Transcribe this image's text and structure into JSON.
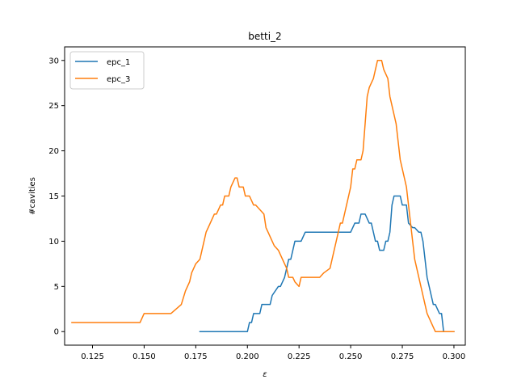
{
  "chart_data": {
    "type": "line",
    "title": "betti_2",
    "xlabel": "ε",
    "ylabel": "#cavities",
    "xlim": [
      0.1115,
      0.3055
    ],
    "ylim": [
      -1.5,
      31.5
    ],
    "xticks": [
      0.125,
      0.15,
      0.175,
      0.2,
      0.225,
      0.25,
      0.275,
      0.3
    ],
    "xtick_labels": [
      "0.125",
      "0.150",
      "0.175",
      "0.200",
      "0.225",
      "0.250",
      "0.275",
      "0.300"
    ],
    "yticks": [
      0,
      5,
      10,
      15,
      20,
      25,
      30
    ],
    "ytick_labels": [
      "0",
      "5",
      "10",
      "15",
      "20",
      "25",
      "30"
    ],
    "grid": false,
    "legend_position": "upper-left",
    "colors": {
      "epc_1": "#1f77b4",
      "epc_3": "#ff7f0e"
    },
    "series": [
      {
        "name": "epc_1",
        "color": "#1f77b4",
        "x": [
          0.177,
          0.2,
          0.201,
          0.202,
          0.203,
          0.206,
          0.207,
          0.211,
          0.212,
          0.215,
          0.216,
          0.218,
          0.219,
          0.22,
          0.221,
          0.222,
          0.223,
          0.224,
          0.225,
          0.226,
          0.228,
          0.229,
          0.23,
          0.231,
          0.233,
          0.235,
          0.24,
          0.245,
          0.25,
          0.252,
          0.253,
          0.254,
          0.255,
          0.256,
          0.257,
          0.259,
          0.26,
          0.261,
          0.262,
          0.263,
          0.264,
          0.265,
          0.266,
          0.267,
          0.268,
          0.269,
          0.27,
          0.271,
          0.272,
          0.273,
          0.274,
          0.275,
          0.276,
          0.277,
          0.278,
          0.28,
          0.281,
          0.283,
          0.284,
          0.285,
          0.286,
          0.287,
          0.288,
          0.289,
          0.29,
          0.291,
          0.292,
          0.293,
          0.294,
          0.295,
          0.296,
          0.297,
          0.298,
          0.3
        ],
        "y": [
          0,
          0,
          1,
          1,
          2,
          2,
          3,
          3,
          4,
          5,
          5,
          6,
          7,
          8,
          8,
          9,
          10,
          10,
          10,
          10,
          11,
          11,
          11,
          11,
          11,
          11,
          11,
          11,
          11,
          12,
          12,
          12,
          13,
          13,
          13,
          12,
          12,
          11,
          10,
          10,
          9,
          9,
          9,
          10,
          10,
          11,
          14,
          15,
          15,
          15,
          15,
          14,
          14,
          14,
          12,
          11.5,
          11.5,
          11,
          11,
          10,
          8,
          6,
          5,
          4,
          3,
          3,
          2.5,
          2,
          2,
          0,
          0,
          0,
          0,
          0
        ]
      },
      {
        "name": "epc_3",
        "color": "#ff7f0e",
        "x": [
          0.115,
          0.148,
          0.149,
          0.15,
          0.151,
          0.163,
          0.168,
          0.17,
          0.171,
          0.172,
          0.173,
          0.174,
          0.175,
          0.177,
          0.178,
          0.179,
          0.18,
          0.181,
          0.182,
          0.184,
          0.185,
          0.186,
          0.187,
          0.188,
          0.189,
          0.19,
          0.191,
          0.192,
          0.194,
          0.195,
          0.196,
          0.197,
          0.198,
          0.199,
          0.2,
          0.201,
          0.203,
          0.204,
          0.208,
          0.209,
          0.21,
          0.211,
          0.212,
          0.213,
          0.215,
          0.216,
          0.217,
          0.219,
          0.22,
          0.221,
          0.222,
          0.223,
          0.225,
          0.226,
          0.227,
          0.229,
          0.23,
          0.231,
          0.235,
          0.237,
          0.24,
          0.241,
          0.242,
          0.243,
          0.244,
          0.245,
          0.246,
          0.247,
          0.248,
          0.249,
          0.25,
          0.251,
          0.252,
          0.253,
          0.254,
          0.255,
          0.256,
          0.257,
          0.258,
          0.259,
          0.26,
          0.261,
          0.262,
          0.263,
          0.264,
          0.265,
          0.266,
          0.267,
          0.268,
          0.269,
          0.27,
          0.271,
          0.272,
          0.273,
          0.274,
          0.275,
          0.276,
          0.277,
          0.278,
          0.279,
          0.28,
          0.281,
          0.282,
          0.283,
          0.284,
          0.285,
          0.286,
          0.287,
          0.288,
          0.289,
          0.29,
          0.291,
          0.292,
          0.293,
          0.294,
          0.295,
          0.296,
          0.297,
          0.298,
          0.3
        ],
        "y": [
          1,
          1,
          1.5,
          2,
          2,
          2,
          3,
          4.5,
          5,
          5.5,
          6.5,
          7,
          7.5,
          8,
          9,
          10,
          11,
          11.5,
          12,
          13,
          13,
          13.5,
          14,
          14,
          15,
          15,
          15,
          16,
          17,
          17,
          16,
          16,
          16,
          15,
          15,
          15,
          14,
          14,
          13,
          11.5,
          11,
          10.5,
          10,
          9.5,
          9,
          8.5,
          8,
          7,
          6,
          6,
          6,
          5.5,
          5,
          6,
          6,
          6,
          6,
          6,
          6,
          6.5,
          7,
          8,
          9,
          10,
          11,
          12,
          12,
          13,
          14,
          15,
          16,
          18,
          18,
          19,
          19,
          19,
          20,
          23,
          26,
          27,
          27.5,
          28,
          29,
          30,
          30,
          30,
          29,
          28.5,
          28,
          26,
          25,
          24,
          23,
          21,
          19,
          18,
          17,
          16,
          14,
          12,
          10,
          8,
          7,
          6,
          5,
          4,
          3,
          2,
          1.5,
          1,
          0.5,
          0,
          0,
          0,
          0,
          0,
          0,
          0,
          0,
          0
        ]
      }
    ]
  }
}
